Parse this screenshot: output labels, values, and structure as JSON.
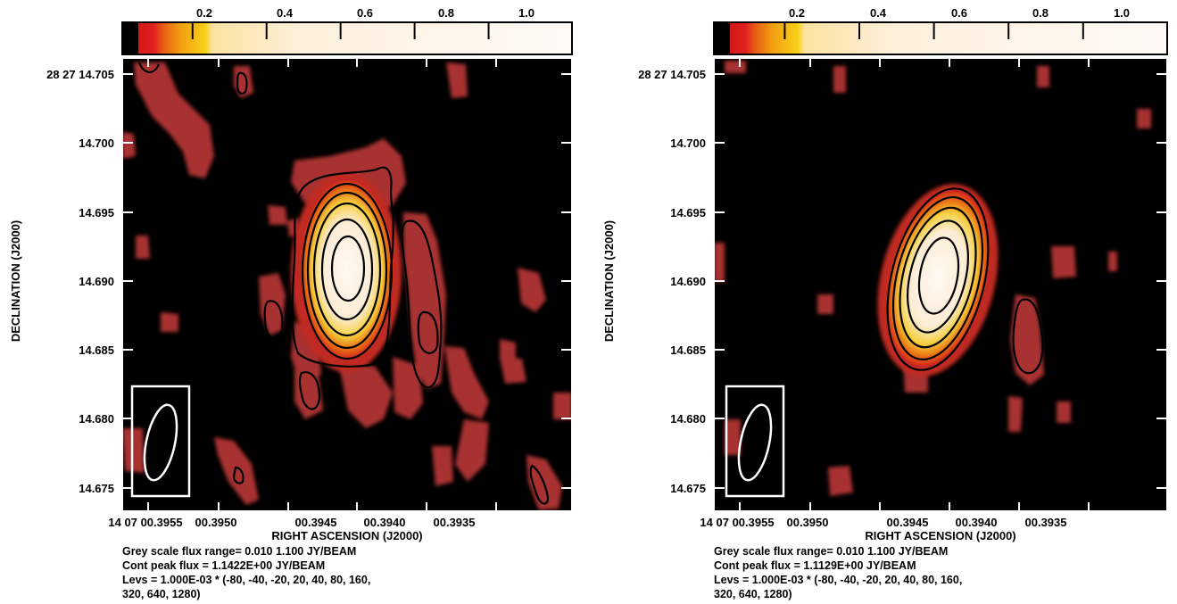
{
  "chart_data": [
    {
      "type": "heatmap",
      "colorbar": {
        "ticks": [
          "0.2",
          "0.4",
          "0.6",
          "0.8",
          "1.0"
        ],
        "tick_values": [
          0.2,
          0.4,
          0.6,
          0.8,
          1.0
        ],
        "range": [
          0.01,
          1.1
        ]
      },
      "xlabel": "RIGHT ASCENSION (J2000)",
      "ylabel": "DECLINATION (J2000)",
      "x_ticks": [
        "14 07 00.3955",
        "00.3950",
        "00.3945",
        "00.3940",
        "00.3935"
      ],
      "y_ticks": [
        "28 27 14.705",
        "14.700",
        "14.695",
        "14.690",
        "14.685",
        "14.680",
        "14.675"
      ],
      "y_tick_values": [
        14.705,
        14.7,
        14.695,
        14.69,
        14.685,
        14.68,
        14.675
      ],
      "source": {
        "ra": 0.39435,
        "dec": 14.69,
        "peak": 1.1422
      },
      "notes": [
        "Grey scale flux range= 0.010 1.100 JY/BEAM",
        "Cont peak flux =  1.1422E+00 JY/BEAM",
        "Levs = 1.000E-03 * (-80, -40, -20, 20, 40, 80, 160,",
        "320, 640, 1280)"
      ],
      "contour_levels": [
        -80,
        -40,
        -20,
        20,
        40,
        80,
        160,
        320,
        640,
        1280
      ]
    },
    {
      "type": "heatmap",
      "colorbar": {
        "ticks": [
          "0.2",
          "0.4",
          "0.6",
          "0.8",
          "1.0"
        ],
        "tick_values": [
          0.2,
          0.4,
          0.6,
          0.8,
          1.0
        ],
        "range": [
          0.01,
          1.1
        ]
      },
      "xlabel": "RIGHT ASCENSION (J2000)",
      "ylabel": "DECLINATION (J2000)",
      "x_ticks": [
        "14 07 00.3955",
        "00.3950",
        "00.3945",
        "00.3940",
        "00.3935"
      ],
      "y_ticks": [
        "28 27 14.705",
        "14.700",
        "14.695",
        "14.690",
        "14.685",
        "14.680",
        "14.675"
      ],
      "y_tick_values": [
        14.705,
        14.7,
        14.695,
        14.69,
        14.685,
        14.68,
        14.675
      ],
      "source": {
        "ra": 0.39436,
        "dec": 14.69,
        "peak": 1.1129
      },
      "notes": [
        "Grey scale flux range= 0.010 1.100 JY/BEAM",
        "Cont peak flux =  1.1129E+00 JY/BEAM",
        "Levs = 1.000E-03 * (-80, -40, -20, 20, 40, 80, 160,",
        "320, 640, 1280)"
      ],
      "contour_levels": [
        -80,
        -40,
        -20,
        20,
        40,
        80,
        160,
        320,
        640,
        1280
      ]
    }
  ],
  "colors": {
    "background": "#000000",
    "ramp": [
      "#000000",
      "#e02020",
      "#e85a14",
      "#f09010",
      "#f8c818",
      "#fbe7b0",
      "#fff8f0",
      "#ffffff"
    ]
  }
}
